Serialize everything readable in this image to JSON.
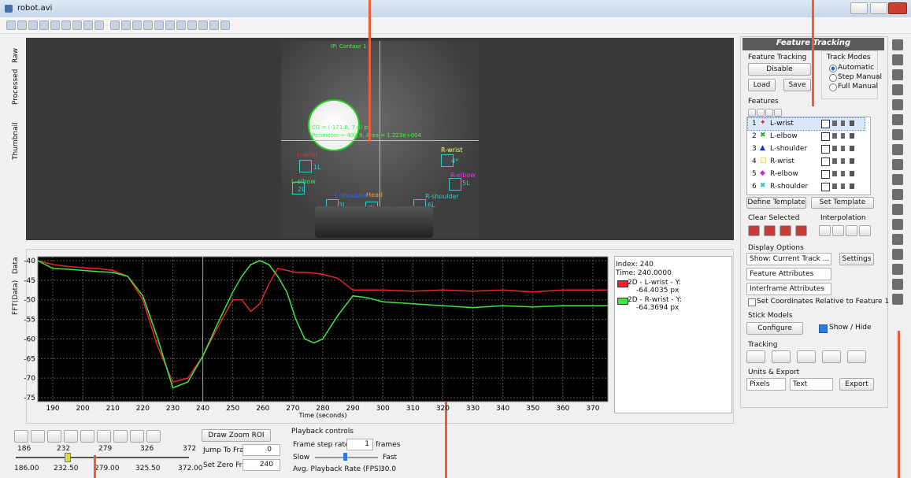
{
  "window": {
    "title": "robot.avi"
  },
  "view_tabs": [
    "Raw",
    "Processed",
    "Thumbnail"
  ],
  "plot_tabs": [
    "Data",
    "FFT(Data)"
  ],
  "video": {
    "measurements": [
      "IP: Contour 1",
      "CG = (-171.8, 7.6) px",
      "Perimeter = 402.9, Area = 1.223e+004"
    ],
    "labels": [
      "L-wrist",
      "1L",
      "L-elbow",
      "2L",
      "L-shoulder",
      "3L",
      "Head",
      "7L",
      "R-shoulder",
      "6L",
      "R-wrist",
      "4*",
      "R-elbow",
      "5L"
    ]
  },
  "chart_data": {
    "type": "line",
    "xlabel": "Time (seconds)",
    "x": [
      185,
      190,
      195,
      200,
      205,
      210,
      215,
      220,
      225,
      230,
      235,
      240,
      245,
      250,
      253,
      256,
      259,
      262,
      265,
      268,
      271,
      274,
      277,
      280,
      285,
      290,
      295,
      300,
      310,
      320,
      330,
      340,
      350,
      360,
      370,
      375
    ],
    "series": [
      {
        "name": "2D - L-wrist - Y:",
        "color": "#e8262a",
        "values": [
          -40,
          -41,
          -41.5,
          -41.8,
          -42,
          -42.5,
          -44,
          -50,
          -62,
          -71,
          -70,
          -64.4,
          -57,
          -50,
          -50,
          -53,
          -51,
          -46,
          -42,
          -42.5,
          -43,
          -43,
          -43.2,
          -43.5,
          -44.5,
          -47.5,
          -47.5,
          -47.5,
          -47.8,
          -47.5,
          -47.8,
          -47.5,
          -48,
          -47.5,
          -47.5,
          -47.5
        ]
      },
      {
        "name": "2D - R-wrist - Y:",
        "color": "#3ee83e",
        "values": [
          -40,
          -42,
          -42.2,
          -42.5,
          -42.8,
          -43,
          -44,
          -49,
          -60,
          -72.5,
          -71,
          -64.4,
          -56,
          -48,
          -44,
          -41,
          -40,
          -41,
          -44,
          -48,
          -55,
          -60,
          -61,
          -60,
          -54,
          -49,
          -49.5,
          -50.5,
          -51,
          -51.5,
          -52,
          -51.5,
          -51.8,
          -51.5,
          -51.5,
          -51.5
        ]
      }
    ],
    "xlim": [
      185,
      375
    ],
    "ylim": [
      -76,
      -39
    ],
    "xticks": [
      190,
      200,
      210,
      220,
      230,
      240,
      250,
      260,
      270,
      280,
      290,
      300,
      310,
      320,
      330,
      340,
      350,
      360,
      370
    ],
    "yticks": [
      -40,
      -45,
      -50,
      -55,
      -60,
      -65,
      -70,
      -75
    ],
    "grid": true,
    "cursor": 240
  },
  "readout": {
    "index": "Index: 240",
    "time": "Time:  240.0000",
    "values": [
      "-64.4035 px",
      "-64.3694 px"
    ]
  },
  "panel": {
    "header": "Feature Tracking",
    "ft_group": "Feature Tracking",
    "disable": "Disable",
    "load": "Load",
    "save": "Save",
    "track_modes": "Track Modes",
    "modes": [
      "Automatic",
      "Step Manual",
      "Full Manual"
    ],
    "features_label": "Features",
    "features": [
      {
        "index": "1",
        "marker": "✦",
        "color": "#e02020",
        "name": "L-wrist"
      },
      {
        "index": "2",
        "marker": "✖",
        "color": "#20b020",
        "name": "L-elbow"
      },
      {
        "index": "3",
        "marker": "▲",
        "color": "#2030c0",
        "name": "L-shoulder"
      },
      {
        "index": "4",
        "marker": "□",
        "color": "#d8c000",
        "name": "R-wrist"
      },
      {
        "index": "5",
        "marker": "◆",
        "color": "#d020d0",
        "name": "R-elbow"
      },
      {
        "index": "6",
        "marker": "✖",
        "color": "#20c0d0",
        "name": "R-shoulder"
      }
    ],
    "define_template": "Define Template",
    "set_template": "Set Template",
    "clear_selected": "Clear Selected",
    "interpolation": "Interpolation",
    "display_options": "Display Options",
    "show": "Show: Current Track ...",
    "settings": "Settings",
    "feature_attributes": "Feature Attributes",
    "interframe_attributes": "Interframe Attributes",
    "relative": "Set Coordinates Relative to Feature 1",
    "stick_models": "Stick Models",
    "configure": "Configure",
    "show_hide": "Show / Hide",
    "tracking": "Tracking",
    "units_export": "Units & Export",
    "units": "Pixels",
    "format": "Text",
    "export": "Export"
  },
  "playback": {
    "top_labels": [
      "186",
      "232",
      "279",
      "326",
      "372"
    ],
    "bottom_labels": [
      "186.00",
      "232.50",
      "279.00",
      "325.50",
      "372.00"
    ],
    "draw_zoom": "Draw Zoom ROI",
    "jump_label": "Jump To Frame",
    "jump_value": "0",
    "zero_label": "Set Zero Frame",
    "zero_value": "240",
    "controls": "Playback controls",
    "step_label": "Frame step rate:",
    "step_value": "1",
    "step_unit": "frames",
    "slow": "Slow",
    "fast": "Fast",
    "rate_label": "Avg. Playback Rate (FPS):",
    "rate_value": "30.0"
  }
}
